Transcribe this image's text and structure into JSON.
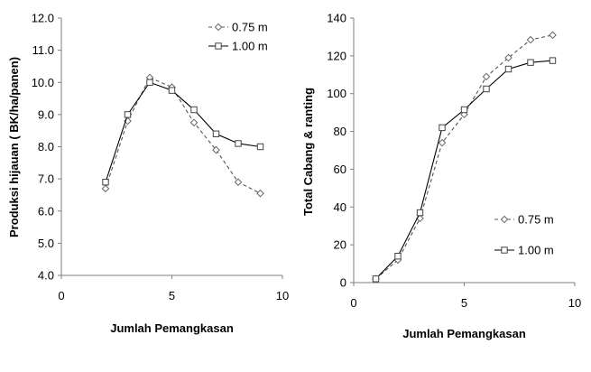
{
  "chart_data": [
    {
      "type": "line",
      "title": "",
      "xlabel": "Jumlah Pemangkasan",
      "ylabel": "Produksi hijauan ( BK/ha/panen)",
      "xlim": [
        0,
        10
      ],
      "ylim": [
        4.0,
        12.0
      ],
      "xticks": [
        "0",
        "5",
        "10"
      ],
      "yticks": [
        "4.0",
        "5.0",
        "6.0",
        "7.0",
        "8.0",
        "9.0",
        "10.0",
        "11.0",
        "12.0"
      ],
      "legend_position": "top-right",
      "series": [
        {
          "name": "0.75 m",
          "style": "dashed",
          "marker": "diamond",
          "x": [
            2,
            3,
            4,
            5,
            6,
            7,
            8,
            9
          ],
          "y": [
            6.7,
            8.8,
            10.15,
            9.85,
            8.75,
            7.9,
            6.9,
            6.55
          ]
        },
        {
          "name": "1.00 m",
          "style": "solid",
          "marker": "square",
          "x": [
            2,
            3,
            4,
            5,
            6,
            7,
            8,
            9
          ],
          "y": [
            6.9,
            9.0,
            10.0,
            9.75,
            9.15,
            8.4,
            8.1,
            8.0
          ]
        }
      ]
    },
    {
      "type": "line",
      "title": "",
      "xlabel": "Jumlah Pemangkasan",
      "ylabel": "Total Cabang & ranting",
      "xlim": [
        0,
        10
      ],
      "ylim": [
        0,
        140
      ],
      "xticks": [
        "0",
        "5",
        "10"
      ],
      "yticks": [
        "0",
        "20",
        "40",
        "60",
        "80",
        "100",
        "120",
        "140"
      ],
      "legend_position": "right",
      "series": [
        {
          "name": "0.75 m",
          "style": "dashed",
          "marker": "diamond",
          "x": [
            1,
            2,
            3,
            4,
            5,
            6,
            7,
            8,
            9
          ],
          "y": [
            2,
            12,
            34,
            74,
            89,
            109,
            119,
            128.5,
            131
          ]
        },
        {
          "name": "1.00 m",
          "style": "solid",
          "marker": "square",
          "x": [
            1,
            2,
            3,
            4,
            5,
            6,
            7,
            8,
            9
          ],
          "y": [
            2,
            14,
            37,
            82,
            91.5,
            102.5,
            113,
            116.5,
            117.5
          ]
        }
      ]
    }
  ]
}
